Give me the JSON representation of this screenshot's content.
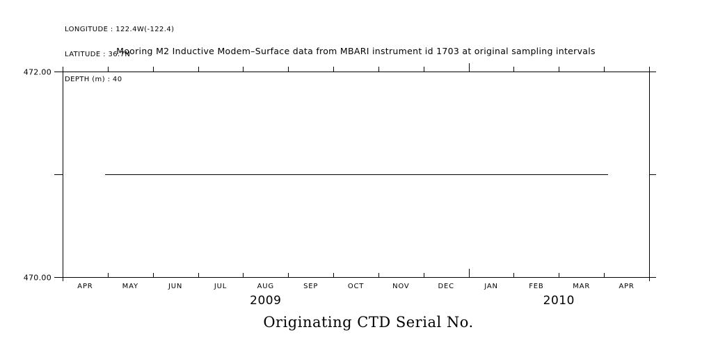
{
  "header": {
    "longitude": "LONGITUDE : 122.4W(-122.4)",
    "latitude": "LATITUDE : 36.7N",
    "depth": "DEPTH (m) : 40"
  },
  "chart_data": {
    "type": "line",
    "title": "Mooring M2 Inductive Modem–Surface data from MBARI instrument id 1703 at original sampling intervals",
    "bottom_label": "Originating CTD Serial No.",
    "x_axis": {
      "months": [
        "APR",
        "MAY",
        "JUN",
        "JUL",
        "AUG",
        "SEP",
        "OCT",
        "NOV",
        "DEC",
        "JAN",
        "FEB",
        "MAR",
        "APR"
      ],
      "year_boundary_tick_index": 9,
      "years": [
        {
          "label": "2009",
          "center_month_frac": 4.5
        },
        {
          "label": "2010",
          "center_month_frac": 11.0
        }
      ]
    },
    "y_axis": {
      "ylim": [
        470.0,
        472.0
      ],
      "ticks": [
        {
          "value": 472.0,
          "label": "472.00"
        },
        {
          "value": 471.0,
          "label": ""
        },
        {
          "value": 470.0,
          "label": "470.00"
        }
      ]
    },
    "series": [
      {
        "name": "Originating CTD Serial No.",
        "y_value": 471.0,
        "x_start_month_frac": 0.94,
        "x_end_month_frac": 12.09
      }
    ],
    "grid": false,
    "legend": false,
    "line_color": "#000000",
    "background": "#ffffff"
  }
}
